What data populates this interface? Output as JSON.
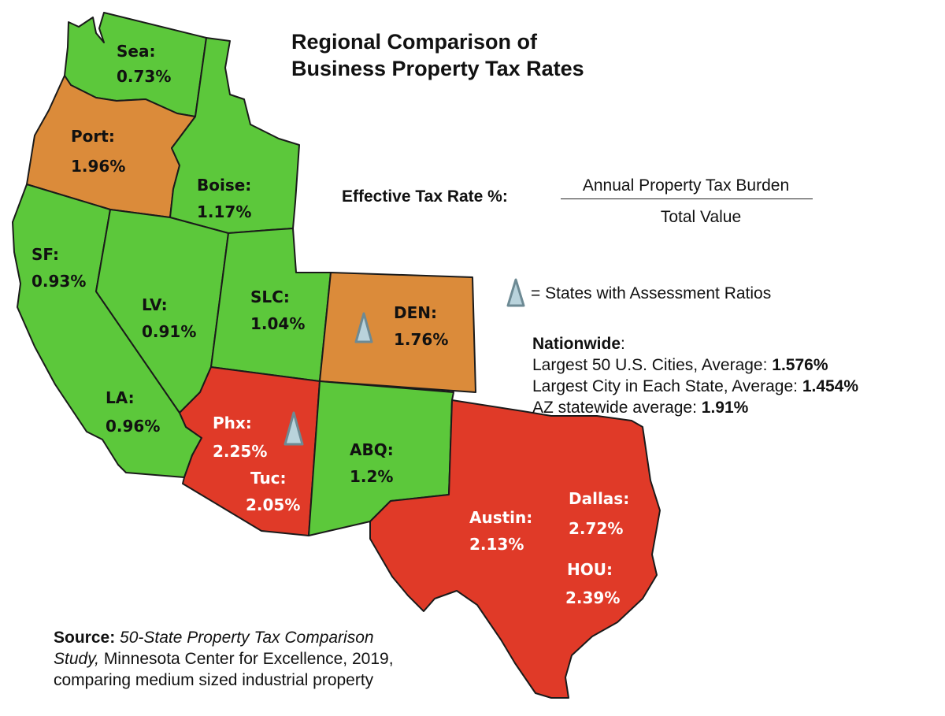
{
  "title": {
    "line1": "Regional Comparison of",
    "line2": "Business Property Tax Rates"
  },
  "formula": {
    "label": "Effective Tax Rate %:",
    "numerator": "Annual Property Tax Burden",
    "denominator": "Total Value"
  },
  "legend": {
    "icon": "assessment-ratio-triangle-icon",
    "text": "= States with Assessment Ratios"
  },
  "nationwide": {
    "heading": "Nationwide",
    "heading_suffix": ":",
    "rows": [
      {
        "label": "Largest 50 U.S. Cities, Average: ",
        "value": "1.576%"
      },
      {
        "label": "Largest City in Each State, Average: ",
        "value": "1.454%"
      },
      {
        "label": "AZ statewide average: ",
        "value": "1.91%"
      }
    ]
  },
  "source": {
    "label": "Source:",
    "title_part1": "50-State Property Tax Comparison",
    "title_part2": "Study,",
    "rest_line2": " Minnesota Center for Excellence, 2019,",
    "line3": "comparing medium sized industrial property"
  },
  "colors": {
    "low": "#5cc83b",
    "medium": "#db8b3a",
    "high": "#e03a28",
    "triangle_fill": "#b9d3dc",
    "triangle_stroke": "#6d8a94"
  },
  "states": [
    {
      "id": "WA",
      "city": "Sea:",
      "rate": "0.73%",
      "category": "low"
    },
    {
      "id": "OR",
      "city": "Port:",
      "rate": "1.96%",
      "category": "medium"
    },
    {
      "id": "ID",
      "city": "Boise:",
      "rate": "1.17%",
      "category": "low"
    },
    {
      "id": "CA",
      "city": "SF:",
      "rate": "0.93%",
      "category": "low",
      "city2": "LA:",
      "rate2": "0.96%"
    },
    {
      "id": "NV",
      "city": "LV:",
      "rate": "0.91%",
      "category": "low"
    },
    {
      "id": "UT",
      "city": "SLC:",
      "rate": "1.04%",
      "category": "low"
    },
    {
      "id": "CO",
      "city": "DEN:",
      "rate": "1.76%",
      "category": "medium",
      "assessment_ratio": true
    },
    {
      "id": "AZ",
      "city": "Phx:",
      "rate": "2.25%",
      "category": "high",
      "city2": "Tuc:",
      "rate2": "2.05%",
      "assessment_ratio": true
    },
    {
      "id": "NM",
      "city": "ABQ:",
      "rate": "1.2%",
      "category": "low"
    },
    {
      "id": "TX",
      "city": "Austin:",
      "rate": "2.13%",
      "category": "high",
      "city2": "Dallas:",
      "rate2": "2.72%",
      "city3": "HOU:",
      "rate3": "2.39%"
    }
  ]
}
